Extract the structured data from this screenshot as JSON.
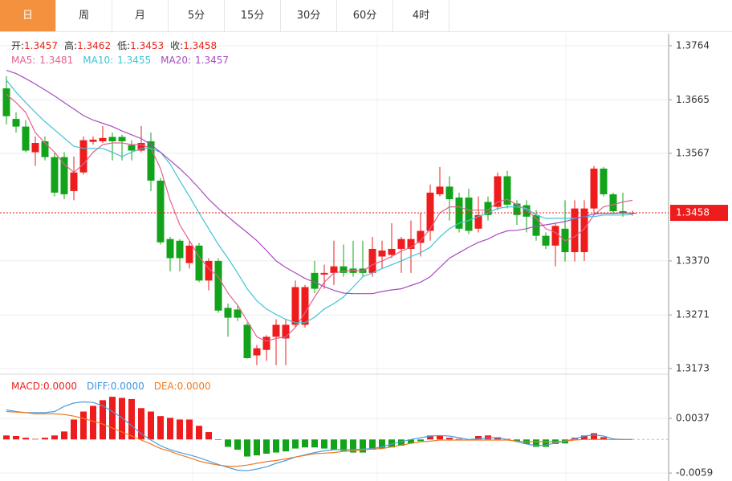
{
  "tabs": [
    "日",
    "周",
    "月",
    "5分",
    "15分",
    "30分",
    "60分",
    "4时"
  ],
  "active_tab": 0,
  "chart_data": [
    {
      "type": "candlestick",
      "header": [
        {
          "label": "开:",
          "value": 1.3457
        },
        {
          "label": "高:",
          "value": 1.3462
        },
        {
          "label": "低:",
          "value": 1.3453
        },
        {
          "label": "收:",
          "value": 1.3458
        }
      ],
      "ma_header": [
        {
          "label": "MA5:",
          "value": 1.3481
        },
        {
          "label": "MA10:",
          "value": 1.3455
        },
        {
          "label": "MA20:",
          "value": 1.3457
        }
      ],
      "up_color": "#ee1c1c",
      "down_color": "#13a31b",
      "header_value_color": "#e8241b",
      "candles": [
        [
          1.3686,
          1.3708,
          1.362,
          1.3635
        ],
        [
          1.363,
          1.3642,
          1.3605,
          1.3616
        ],
        [
          1.3616,
          1.3628,
          1.3569,
          1.3572
        ],
        [
          1.3569,
          1.3598,
          1.3544,
          1.3586
        ],
        [
          1.3589,
          1.3598,
          1.3554,
          1.356
        ],
        [
          1.356,
          1.3569,
          1.3488,
          1.3495
        ],
        [
          1.356,
          1.3569,
          1.3483,
          1.3492
        ],
        [
          1.3498,
          1.3561,
          1.3481,
          1.3532
        ],
        [
          1.3532,
          1.3598,
          1.3528,
          1.3591
        ],
        [
          1.3588,
          1.3598,
          1.3583,
          1.3592
        ],
        [
          1.3589,
          1.3617,
          1.3586,
          1.3595
        ],
        [
          1.3597,
          1.3605,
          1.3554,
          1.3589
        ],
        [
          1.3597,
          1.3601,
          1.3554,
          1.3589
        ],
        [
          1.3582,
          1.3591,
          1.3554,
          1.3572
        ],
        [
          1.3572,
          1.3617,
          1.3569,
          1.3586
        ],
        [
          1.3589,
          1.3605,
          1.3498,
          1.3517
        ],
        [
          1.3517,
          1.3522,
          1.34,
          1.3404
        ],
        [
          1.341,
          1.3414,
          1.3351,
          1.3375
        ],
        [
          1.3407,
          1.341,
          1.3351,
          1.3375
        ],
        [
          1.3366,
          1.3407,
          1.3356,
          1.3398
        ],
        [
          1.3398,
          1.3403,
          1.3331,
          1.3334
        ],
        [
          1.3334,
          1.3375,
          1.3316,
          1.337
        ],
        [
          1.337,
          1.3375,
          1.3275,
          1.3279
        ],
        [
          1.3284,
          1.3292,
          1.3231,
          1.3266
        ],
        [
          1.3281,
          1.3289,
          1.326,
          1.3266
        ],
        [
          1.3253,
          1.3257,
          1.3191,
          1.3192
        ],
        [
          1.3197,
          1.3216,
          1.3179,
          1.321
        ],
        [
          1.3207,
          1.3234,
          1.3187,
          1.3231
        ],
        [
          1.3231,
          1.3263,
          1.3179,
          1.3253
        ],
        [
          1.3228,
          1.3263,
          1.3179,
          1.3253
        ],
        [
          1.3253,
          1.3334,
          1.3248,
          1.3322
        ],
        [
          1.3253,
          1.3326,
          1.3248,
          1.3322
        ],
        [
          1.3348,
          1.337,
          1.3311,
          1.3319
        ],
        [
          1.3345,
          1.3363,
          1.3319,
          1.3348
        ],
        [
          1.3348,
          1.3407,
          1.3326,
          1.336
        ],
        [
          1.336,
          1.34,
          1.3341,
          1.3348
        ],
        [
          1.3356,
          1.3407,
          1.3341,
          1.3348
        ],
        [
          1.3356,
          1.3407,
          1.3341,
          1.3348
        ],
        [
          1.3348,
          1.3414,
          1.3341,
          1.3392
        ],
        [
          1.3378,
          1.3407,
          1.3356,
          1.3389
        ],
        [
          1.3381,
          1.3439,
          1.3375,
          1.3392
        ],
        [
          1.3392,
          1.3414,
          1.3348,
          1.341
        ],
        [
          1.3392,
          1.3444,
          1.3348,
          1.341
        ],
        [
          1.3403,
          1.3458,
          1.3378,
          1.3425
        ],
        [
          1.3425,
          1.351,
          1.3407,
          1.3495
        ],
        [
          1.3492,
          1.3542,
          1.3488,
          1.3506
        ],
        [
          1.3506,
          1.3525,
          1.3444,
          1.3483
        ],
        [
          1.3486,
          1.3495,
          1.3422,
          1.3429
        ],
        [
          1.3486,
          1.3502,
          1.3419,
          1.3425
        ],
        [
          1.3429,
          1.3488,
          1.3422,
          1.3454
        ],
        [
          1.3478,
          1.3488,
          1.3444,
          1.3454
        ],
        [
          1.3469,
          1.3532,
          1.3463,
          1.3525
        ],
        [
          1.3525,
          1.3535,
          1.3466,
          1.3473
        ],
        [
          1.3475,
          1.3481,
          1.3436,
          1.3454
        ],
        [
          1.3472,
          1.3481,
          1.3422,
          1.3451
        ],
        [
          1.3454,
          1.3463,
          1.3407,
          1.3416
        ],
        [
          1.3416,
          1.3422,
          1.3392,
          1.3398
        ],
        [
          1.3398,
          1.3439,
          1.336,
          1.3434
        ],
        [
          1.3429,
          1.3481,
          1.3369,
          1.3386
        ],
        [
          1.3386,
          1.3481,
          1.3369,
          1.3466
        ],
        [
          1.3386,
          1.3481,
          1.337,
          1.3466
        ],
        [
          1.3466,
          1.3544,
          1.3458,
          1.3539
        ],
        [
          1.3539,
          1.3542,
          1.3488,
          1.3492
        ],
        [
          1.3492,
          1.3495,
          1.3457,
          1.3461
        ],
        [
          1.3461,
          1.3495,
          1.3451,
          1.3457
        ],
        [
          1.3457,
          1.3462,
          1.3453,
          1.3458
        ]
      ],
      "series": [
        {
          "name": "MA5",
          "color": "#e2628f",
          "values": [
            1.3675,
            1.366,
            1.3642,
            1.3605,
            1.3586,
            1.3569,
            1.3547,
            1.3532,
            1.3547,
            1.3569,
            1.3583,
            1.3586,
            1.3586,
            1.3583,
            1.3583,
            1.3576,
            1.3539,
            1.3481,
            1.3436,
            1.3407,
            1.3378,
            1.3356,
            1.3341,
            1.3311,
            1.3289,
            1.326,
            1.3231,
            1.3223,
            1.3228,
            1.3231,
            1.3248,
            1.3275,
            1.3304,
            1.3331,
            1.3348,
            1.3351,
            1.3353,
            1.3351,
            1.3363,
            1.337,
            1.3378,
            1.3388,
            1.3395,
            1.3407,
            1.3429,
            1.3458,
            1.3469,
            1.3469,
            1.3463,
            1.3463,
            1.3463,
            1.3478,
            1.3483,
            1.3473,
            1.3463,
            1.3448,
            1.3429,
            1.3422,
            1.3407,
            1.3414,
            1.3429,
            1.3454,
            1.3469,
            1.3473,
            1.3478,
            1.3481
          ]
        },
        {
          "name": "MA10",
          "color": "#3fc3d6",
          "values": [
            1.3701,
            1.3679,
            1.366,
            1.3642,
            1.3625,
            1.361,
            1.3595,
            1.358,
            1.3576,
            1.3576,
            1.3576,
            1.3569,
            1.3561,
            1.3569,
            1.3576,
            1.3576,
            1.3569,
            1.3547,
            1.3517,
            1.3488,
            1.3458,
            1.3429,
            1.34,
            1.3375,
            1.3348,
            1.3319,
            1.3297,
            1.3282,
            1.3272,
            1.3263,
            1.3257,
            1.3257,
            1.3267,
            1.3282,
            1.3292,
            1.3304,
            1.3322,
            1.3341,
            1.3348,
            1.3356,
            1.3363,
            1.337,
            1.3378,
            1.3385,
            1.3395,
            1.3414,
            1.3429,
            1.3439,
            1.3444,
            1.3451,
            1.3458,
            1.3466,
            1.3469,
            1.3469,
            1.3466,
            1.3454,
            1.3448,
            1.3448,
            1.3448,
            1.3448,
            1.3451,
            1.3451,
            1.3454,
            1.3454,
            1.3454,
            1.3455
          ]
        },
        {
          "name": "MA20",
          "color": "#a64cbf",
          "values": [
            1.3719,
            1.3713,
            1.3704,
            1.3694,
            1.3683,
            1.3672,
            1.366,
            1.3648,
            1.3636,
            1.3628,
            1.3622,
            1.3616,
            1.3608,
            1.3601,
            1.3594,
            1.3583,
            1.3569,
            1.3554,
            1.3539,
            1.3522,
            1.3503,
            1.3483,
            1.3466,
            1.3451,
            1.3436,
            1.3422,
            1.3407,
            1.3389,
            1.337,
            1.3358,
            1.3348,
            1.3338,
            1.3331,
            1.3323,
            1.3316,
            1.3311,
            1.331,
            1.331,
            1.331,
            1.3314,
            1.3317,
            1.3319,
            1.3325,
            1.3331,
            1.3341,
            1.3358,
            1.3375,
            1.3385,
            1.3395,
            1.3404,
            1.341,
            1.3419,
            1.3425,
            1.3426,
            1.3429,
            1.3434,
            1.3436,
            1.3439,
            1.3442,
            1.3447,
            1.3451,
            1.3456,
            1.3457,
            1.3457,
            1.3458,
            1.3457
          ]
        }
      ],
      "ylim": [
        1.3164,
        1.3786
      ],
      "yticks": [
        1.3764,
        1.3665,
        1.3567,
        {
          "value": 1.337,
          "label": "1.3370"
        },
        1.3271,
        1.3173
      ],
      "last_price": 1.3458,
      "grid": true
    },
    {
      "type": "macd",
      "header": [
        {
          "label": "MACD:",
          "text": "0.0000",
          "color": "#e8241b"
        },
        {
          "label": "DIFF:",
          "text": "0.0000",
          "color": "#3d96e0"
        },
        {
          "label": "DEA:",
          "text": "0.0000",
          "color": "#f07b22"
        }
      ],
      "histogram": {
        "name": "MACD",
        "up_color": "#ee1c1c",
        "down_color": "#13a31b",
        "values": [
          0.0007,
          0.0006,
          0.0003,
          0.0001,
          0.0003,
          0.0007,
          0.0014,
          0.0035,
          0.0049,
          0.0059,
          0.0069,
          0.0075,
          0.0073,
          0.0071,
          0.0055,
          0.0049,
          0.0041,
          0.0038,
          0.0035,
          0.0035,
          0.0024,
          0.0013,
          -0.0001,
          -0.0013,
          -0.0018,
          -0.003,
          -0.0028,
          -0.0025,
          -0.0023,
          -0.0021,
          -0.0016,
          -0.0014,
          -0.0014,
          -0.0016,
          -0.0018,
          -0.002,
          -0.0023,
          -0.0023,
          -0.0018,
          -0.0016,
          -0.0014,
          -0.0011,
          -0.0007,
          -0.0003,
          0.0007,
          0.0007,
          0.0003,
          0.0001,
          -0.0001,
          0.0006,
          0.0007,
          0.0004,
          0.0001,
          -0.0003,
          -0.0008,
          -0.0013,
          -0.0013,
          -0.0008,
          -0.0007,
          0.0003,
          0.0007,
          0.0011,
          0.0004,
          0,
          -0.0001,
          0
        ]
      },
      "series": [
        {
          "name": "DIFF",
          "color": "#4a9ee0",
          "values": [
            0.0052,
            0.0049,
            0.0047,
            0.0047,
            0.0047,
            0.0049,
            0.0058,
            0.0064,
            0.0066,
            0.0065,
            0.0059,
            0.0049,
            0.0038,
            0.0024,
            0.001,
            -0.0001,
            -0.0011,
            -0.0018,
            -0.0023,
            -0.0027,
            -0.0032,
            -0.0038,
            -0.0044,
            -0.0049,
            -0.0054,
            -0.0055,
            -0.0052,
            -0.0048,
            -0.0042,
            -0.0037,
            -0.0031,
            -0.0027,
            -0.0023,
            -0.002,
            -0.0018,
            -0.0018,
            -0.0018,
            -0.0017,
            -0.0016,
            -0.0013,
            -0.0008,
            -0.0004,
            0,
            0.0003,
            0.0006,
            0.0007,
            0.0006,
            0.0003,
            0,
            0.0001,
            0.0003,
            0.0003,
            0,
            -0.0004,
            -0.0008,
            -0.0011,
            -0.001,
            -0.0006,
            -0.0003,
            0.0001,
            0.0006,
            0.0008,
            0.0006,
            0.0001,
            0,
            0
          ]
        },
        {
          "name": "DEA",
          "color": "#f07b22",
          "values": [
            0.0049,
            0.0048,
            0.0047,
            0.0045,
            0.0045,
            0.0045,
            0.0044,
            0.0041,
            0.0037,
            0.0032,
            0.0027,
            0.002,
            0.0013,
            0.0006,
            -0.0001,
            -0.0008,
            -0.0016,
            -0.0021,
            -0.0027,
            -0.0032,
            -0.0038,
            -0.0042,
            -0.0045,
            -0.0047,
            -0.0047,
            -0.0045,
            -0.0042,
            -0.0039,
            -0.0037,
            -0.0034,
            -0.0031,
            -0.0028,
            -0.0025,
            -0.0024,
            -0.0023,
            -0.0021,
            -0.002,
            -0.0018,
            -0.0017,
            -0.0016,
            -0.0013,
            -0.001,
            -0.0007,
            -0.0004,
            -0.0003,
            -0.0001,
            -0.0001,
            -0.0001,
            -0.0001,
            -0.0001,
            -0.0001,
            -0.0001,
            -0.0001,
            -0.0003,
            -0.0004,
            -0.0004,
            -0.0004,
            -0.0004,
            -0.0003,
            -0.0001,
            0,
            0,
            0,
            0,
            0,
            0
          ]
        }
      ],
      "ylim": [
        -0.0073,
        0.0109
      ],
      "yticks": [
        0.0037,
        -0.0059
      ],
      "grid": true
    }
  ]
}
